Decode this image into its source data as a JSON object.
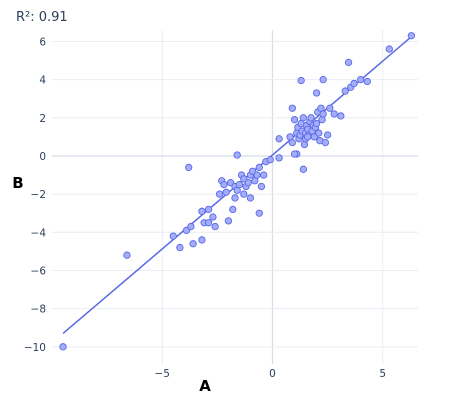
{
  "chart_data": {
    "type": "scatter",
    "title": "R²: 0.91",
    "xlabel": "A",
    "ylabel": "B",
    "xlim": [
      -10,
      6.6
    ],
    "ylim": [
      -10.9,
      6.6
    ],
    "x_ticks": [
      -5,
      0,
      5
    ],
    "y_ticks": [
      -10,
      -8,
      -6,
      -4,
      -2,
      0,
      2,
      4,
      6
    ],
    "grid": true,
    "legend": "none",
    "colors": {
      "marker_fill": "#a3adf8",
      "marker_edge": "#5a68e8",
      "trend_line": "#5a68e8"
    },
    "series": [
      {
        "points": [
          [
            -9.5,
            -10.0
          ],
          [
            -6.6,
            -5.2
          ],
          [
            -4.5,
            -4.2
          ],
          [
            -4.2,
            -4.8
          ],
          [
            -3.9,
            -3.9
          ],
          [
            -3.7,
            -3.7
          ],
          [
            -3.6,
            -4.6
          ],
          [
            -3.8,
            -0.6
          ],
          [
            -3.2,
            -4.4
          ],
          [
            -3.2,
            -2.9
          ],
          [
            -3.1,
            -3.5
          ],
          [
            -2.9,
            -2.8
          ],
          [
            -2.9,
            -3.5
          ],
          [
            -2.7,
            -3.2
          ],
          [
            -2.6,
            -3.7
          ],
          [
            -2.4,
            -2.0
          ],
          [
            -2.3,
            -1.3
          ],
          [
            -2.2,
            -1.5
          ],
          [
            -2.1,
            -1.9
          ],
          [
            -2.0,
            -3.4
          ],
          [
            -1.9,
            -1.4
          ],
          [
            -1.8,
            -2.8
          ],
          [
            -1.7,
            -1.6
          ],
          [
            -1.7,
            -2.2
          ],
          [
            -1.6,
            -1.8
          ],
          [
            -1.5,
            -1.5
          ],
          [
            -1.6,
            0.05
          ],
          [
            -1.4,
            -1.0
          ],
          [
            -1.3,
            -1.2
          ],
          [
            -1.3,
            -2.0
          ],
          [
            -1.2,
            -1.6
          ],
          [
            -1.1,
            -1.4
          ],
          [
            -1.0,
            -1.0
          ],
          [
            -1.0,
            -2.2
          ],
          [
            -0.9,
            -0.8
          ],
          [
            -0.8,
            -1.3
          ],
          [
            -0.7,
            -1.0
          ],
          [
            -0.6,
            -0.6
          ],
          [
            -0.6,
            -3.0
          ],
          [
            -0.5,
            -1.6
          ],
          [
            -0.4,
            -1.0
          ],
          [
            -0.3,
            -0.3
          ],
          [
            -0.1,
            -0.2
          ],
          [
            0.3,
            0.9
          ],
          [
            0.3,
            -0.1
          ],
          [
            0.8,
            1.0
          ],
          [
            0.9,
            0.7
          ],
          [
            1.0,
            1.9
          ],
          [
            1.1,
            1.2
          ],
          [
            1.1,
            0.1
          ],
          [
            1.15,
            1.5
          ],
          [
            1.2,
            0.9
          ],
          [
            1.25,
            1.1
          ],
          [
            1.3,
            1.7
          ],
          [
            1.35,
            1.3
          ],
          [
            1.4,
            2.0
          ],
          [
            1.45,
            0.6
          ],
          [
            1.5,
            1.2
          ],
          [
            1.5,
            0.9
          ],
          [
            1.55,
            1.6
          ],
          [
            1.6,
            1.4
          ],
          [
            1.65,
            1.1
          ],
          [
            1.7,
            1.8
          ],
          [
            1.75,
            2.0
          ],
          [
            1.8,
            1.3
          ],
          [
            1.85,
            1.6
          ],
          [
            1.9,
            1.0
          ],
          [
            1.95,
            1.5
          ],
          [
            2.0,
            1.7
          ],
          [
            2.05,
            2.3
          ],
          [
            2.1,
            1.2
          ],
          [
            2.15,
            0.8
          ],
          [
            2.2,
            2.5
          ],
          [
            2.25,
            1.9
          ],
          [
            2.3,
            2.2
          ],
          [
            2.4,
            0.7
          ],
          [
            2.5,
            1.1
          ],
          [
            2.6,
            2.5
          ],
          [
            1.3,
            3.95
          ],
          [
            1.4,
            -0.7
          ],
          [
            0.9,
            2.5
          ],
          [
            1.0,
            0.1
          ],
          [
            2.3,
            4.0
          ],
          [
            2.8,
            2.2
          ],
          [
            3.1,
            2.1
          ],
          [
            3.3,
            3.4
          ],
          [
            3.45,
            4.9
          ],
          [
            3.55,
            3.6
          ],
          [
            3.7,
            3.8
          ],
          [
            4.0,
            4.0
          ],
          [
            4.3,
            3.9
          ],
          [
            5.3,
            5.6
          ],
          [
            6.3,
            6.3
          ],
          [
            2.0,
            3.3
          ],
          [
            1.6,
            1.0
          ]
        ]
      }
    ],
    "trendline": {
      "x": [
        -9.5,
        6.3
      ],
      "y": [
        -9.3,
        6.25
      ]
    }
  }
}
